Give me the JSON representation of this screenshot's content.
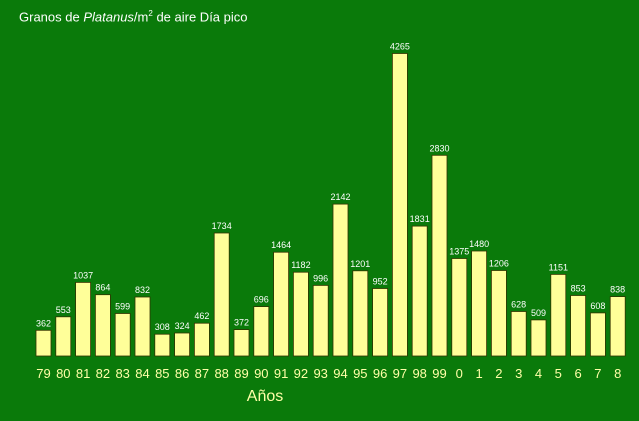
{
  "colors": {
    "background": "#0a7a0a",
    "bar": "#ffff99",
    "bar_stroke": "#333300",
    "text": "#ffffff",
    "axis_text": "#ffffa8"
  },
  "chart_data": {
    "type": "bar",
    "title_parts": {
      "prefix": "Granos de ",
      "species": "Platanus",
      "unit_base": "/m",
      "unit_exp": "2",
      "suffix": " de aire Día pico"
    },
    "xlabel": "Años",
    "ylabel": "",
    "ylim": [
      0,
      4300
    ],
    "grid": false,
    "legend": "none",
    "categories": [
      "79",
      "80",
      "81",
      "82",
      "83",
      "84",
      "85",
      "86",
      "87",
      "88",
      "89",
      "90",
      "91",
      "92",
      "93",
      "94",
      "95",
      "96",
      "97",
      "98",
      "99",
      "0",
      "1",
      "2",
      "3",
      "4",
      "5",
      "6",
      "7",
      "8"
    ],
    "values": [
      362,
      553,
      1037,
      864,
      599,
      832,
      308,
      324,
      462,
      1734,
      372,
      696,
      1464,
      1182,
      996,
      2142,
      1201,
      952,
      4265,
      1831,
      2830,
      1375,
      1480,
      1206,
      628,
      509,
      1151,
      853,
      608,
      838
    ]
  }
}
